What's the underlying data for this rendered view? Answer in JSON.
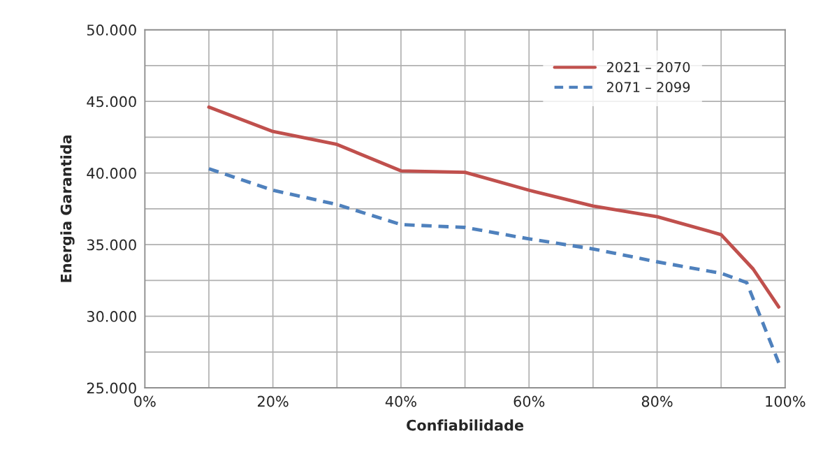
{
  "chart_data": {
    "type": "line",
    "xlabel": "Confiabilidade",
    "ylabel": "Energia Garantida",
    "series": [
      {
        "name": "2021 – 2070",
        "color": "#c0504d",
        "line_style": "solid",
        "x": [
          10,
          20,
          30,
          40,
          50,
          60,
          70,
          80,
          90,
          95,
          99
        ],
        "values": [
          44600,
          42900,
          42000,
          40150,
          40050,
          38800,
          37700,
          36950,
          35700,
          33300,
          30650
        ]
      },
      {
        "name": "2071 – 2099",
        "color": "#4f81bd",
        "line_style": "dashed",
        "x": [
          10,
          20,
          30,
          40,
          50,
          60,
          70,
          80,
          90,
          94,
          99
        ],
        "values": [
          40300,
          38800,
          37800,
          36400,
          36200,
          35400,
          34700,
          33800,
          33000,
          32350,
          26750
        ]
      }
    ],
    "xlim": [
      0,
      100
    ],
    "xticks": [
      {
        "value": 0,
        "label": "0%"
      },
      {
        "value": 10,
        "label": null
      },
      {
        "value": 20,
        "label": "20%"
      },
      {
        "value": 30,
        "label": null
      },
      {
        "value": 40,
        "label": "40%"
      },
      {
        "value": 50,
        "label": null
      },
      {
        "value": 60,
        "label": "60%"
      },
      {
        "value": 70,
        "label": null
      },
      {
        "value": 80,
        "label": "80%"
      },
      {
        "value": 90,
        "label": null
      },
      {
        "value": 100,
        "label": "100%"
      }
    ],
    "ylim": [
      25000,
      50000
    ],
    "yticks": [
      {
        "value": 25000,
        "label": "25.000"
      },
      {
        "value": 27500,
        "label": null
      },
      {
        "value": 30000,
        "label": "30.000"
      },
      {
        "value": 32500,
        "label": null
      },
      {
        "value": 35000,
        "label": "35.000"
      },
      {
        "value": 37500,
        "label": null
      },
      {
        "value": 40000,
        "label": "40.000"
      },
      {
        "value": 42500,
        "label": null
      },
      {
        "value": 45000,
        "label": "45.000"
      },
      {
        "value": 47500,
        "label": null
      },
      {
        "value": 50000,
        "label": "50.000"
      }
    ],
    "grid": true,
    "legend": "top right",
    "marker": "none"
  }
}
